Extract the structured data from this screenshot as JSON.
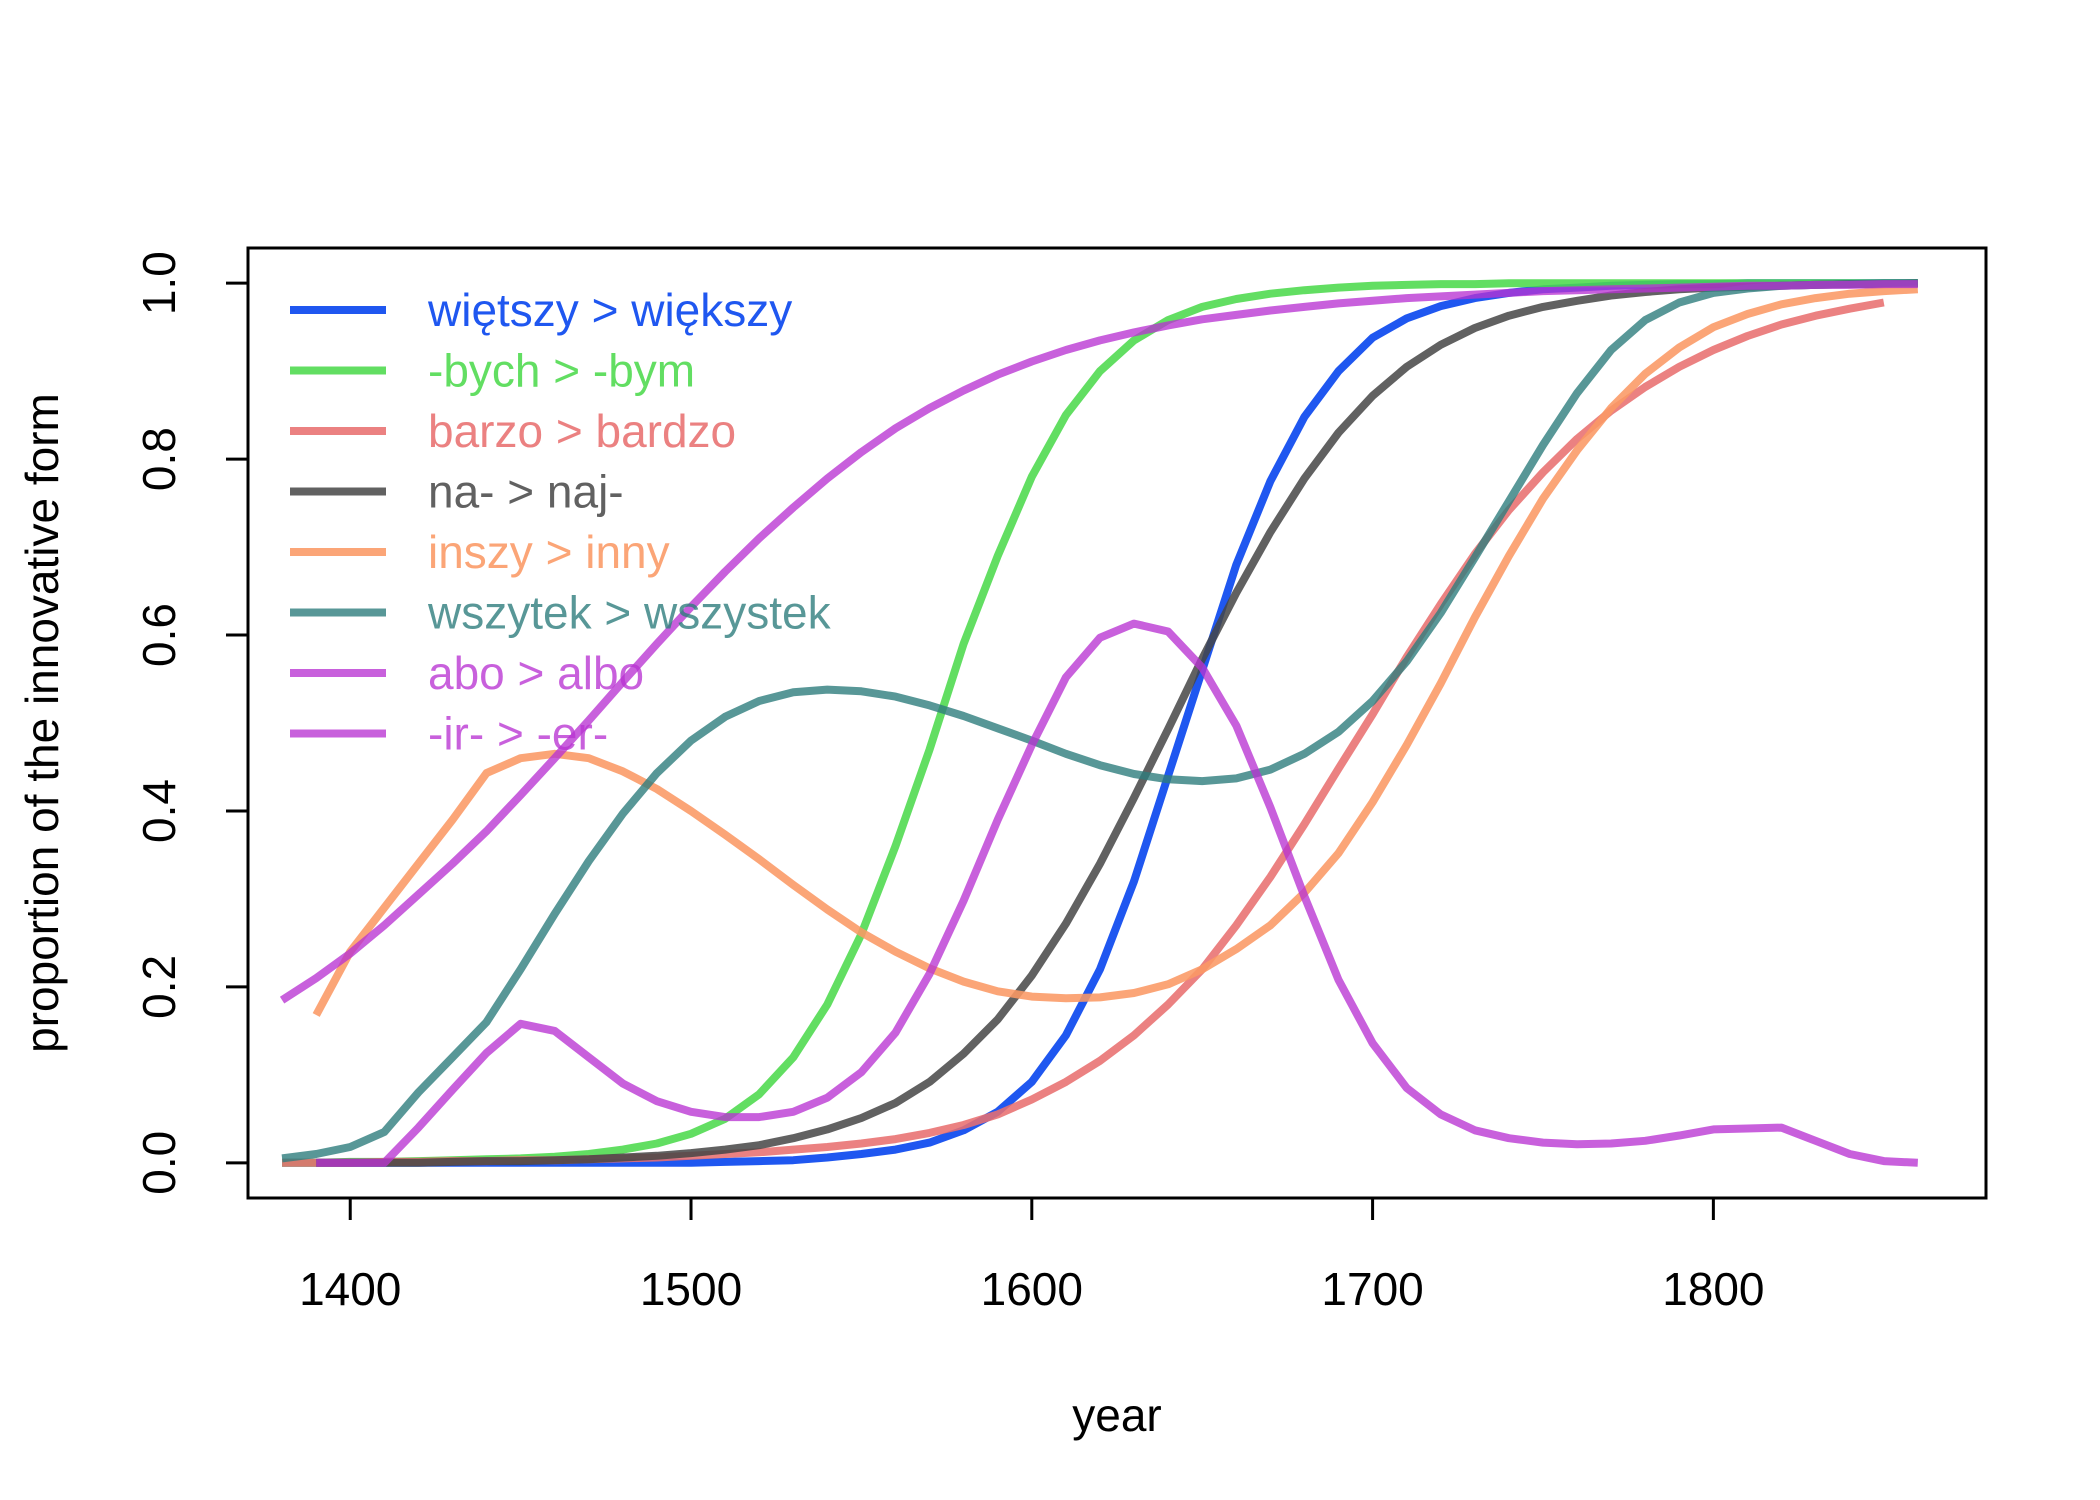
{
  "chart_data": {
    "type": "line",
    "title": "",
    "xlabel": "year",
    "ylabel": "proportion of the innovative form",
    "xlim": [
      1370,
      1880
    ],
    "ylim": [
      -0.04,
      1.04
    ],
    "xticks": [
      1400,
      1500,
      1600,
      1700,
      1800
    ],
    "yticks": [
      0.0,
      0.2,
      0.4,
      0.6,
      0.8,
      1.0
    ],
    "xtick_labels": [
      "1400",
      "1500",
      "1600",
      "1700",
      "1800"
    ],
    "ytick_labels": [
      "0.0",
      "0.2",
      "0.4",
      "0.6",
      "0.8",
      "1.0"
    ],
    "grid": false,
    "legend_position": "top-left",
    "series": [
      {
        "name": "więtszy > większy",
        "color": "#0040ee",
        "opacity": 0.88,
        "x": [
          1380,
          1390,
          1400,
          1410,
          1420,
          1430,
          1440,
          1450,
          1460,
          1470,
          1480,
          1490,
          1500,
          1510,
          1520,
          1530,
          1540,
          1550,
          1560,
          1570,
          1580,
          1590,
          1600,
          1610,
          1620,
          1630,
          1640,
          1650,
          1660,
          1670,
          1680,
          1690,
          1700,
          1710,
          1720,
          1730,
          1740,
          1750,
          1760,
          1770,
          1780,
          1790,
          1800,
          1810,
          1820,
          1830,
          1840,
          1850,
          1860
        ],
        "y": [
          0,
          0,
          0,
          0,
          0,
          0,
          0,
          0,
          0,
          0,
          0,
          0,
          0,
          0.001,
          0.002,
          0.003,
          0.006,
          0.01,
          0.015,
          0.023,
          0.037,
          0.058,
          0.092,
          0.145,
          0.22,
          0.32,
          0.44,
          0.56,
          0.68,
          0.775,
          0.848,
          0.9,
          0.938,
          0.96,
          0.974,
          0.983,
          0.989,
          0.993,
          0.995,
          0.997,
          0.998,
          0.999,
          0.999,
          1,
          1,
          1,
          1,
          1,
          1
        ]
      },
      {
        "name": "-bych > -bym",
        "color": "#4cd94c",
        "opacity": 0.88,
        "x": [
          1380,
          1390,
          1400,
          1410,
          1420,
          1430,
          1440,
          1450,
          1460,
          1470,
          1480,
          1490,
          1500,
          1510,
          1520,
          1530,
          1540,
          1550,
          1560,
          1570,
          1580,
          1590,
          1600,
          1610,
          1620,
          1630,
          1640,
          1650,
          1660,
          1670,
          1680,
          1690,
          1700,
          1710,
          1720,
          1730,
          1740,
          1750,
          1760,
          1770,
          1780,
          1790,
          1800,
          1810,
          1820,
          1830,
          1840,
          1850,
          1860
        ],
        "y": [
          0,
          0,
          0.001,
          0.001,
          0.002,
          0.003,
          0.004,
          0.005,
          0.007,
          0.01,
          0.015,
          0.022,
          0.033,
          0.05,
          0.078,
          0.12,
          0.18,
          0.26,
          0.36,
          0.47,
          0.59,
          0.69,
          0.78,
          0.85,
          0.9,
          0.935,
          0.958,
          0.973,
          0.982,
          0.988,
          0.992,
          0.995,
          0.997,
          0.998,
          0.999,
          0.999,
          1,
          1,
          1,
          1,
          1,
          1,
          1,
          1,
          1,
          1,
          1,
          1,
          1
        ]
      },
      {
        "name": "barzo > bardzo",
        "color": "#e87070",
        "opacity": 0.88,
        "x": [
          1380,
          1390,
          1400,
          1410,
          1420,
          1430,
          1440,
          1450,
          1460,
          1470,
          1480,
          1490,
          1500,
          1510,
          1520,
          1530,
          1540,
          1550,
          1560,
          1570,
          1580,
          1590,
          1600,
          1610,
          1620,
          1630,
          1640,
          1650,
          1660,
          1670,
          1680,
          1690,
          1700,
          1710,
          1720,
          1730,
          1740,
          1750,
          1760,
          1770,
          1780,
          1790,
          1800,
          1810,
          1820,
          1830,
          1840,
          1850
        ],
        "y": [
          0,
          0,
          0,
          0.001,
          0.001,
          0.002,
          0.002,
          0.003,
          0.003,
          0.004,
          0.005,
          0.006,
          0.008,
          0.01,
          0.012,
          0.015,
          0.018,
          0.022,
          0.027,
          0.034,
          0.043,
          0.055,
          0.072,
          0.092,
          0.116,
          0.145,
          0.18,
          0.22,
          0.27,
          0.325,
          0.385,
          0.448,
          0.51,
          0.575,
          0.635,
          0.692,
          0.742,
          0.785,
          0.823,
          0.855,
          0.882,
          0.905,
          0.924,
          0.94,
          0.953,
          0.963,
          0.971,
          0.978
        ]
      },
      {
        "name": "na- > naj-",
        "color": "#454545",
        "opacity": 0.85,
        "x": [
          1390,
          1400,
          1410,
          1420,
          1430,
          1440,
          1450,
          1460,
          1470,
          1480,
          1490,
          1500,
          1510,
          1520,
          1530,
          1540,
          1550,
          1560,
          1570,
          1580,
          1590,
          1600,
          1610,
          1620,
          1630,
          1640,
          1650,
          1660,
          1670,
          1680,
          1690,
          1700,
          1710,
          1720,
          1730,
          1740,
          1750,
          1760,
          1770,
          1780,
          1790,
          1800,
          1810,
          1820,
          1830,
          1840,
          1850,
          1860
        ],
        "y": [
          0,
          0,
          0,
          0,
          0.001,
          0.002,
          0.002,
          0.003,
          0.004,
          0.006,
          0.008,
          0.011,
          0.015,
          0.02,
          0.028,
          0.038,
          0.051,
          0.068,
          0.092,
          0.124,
          0.163,
          0.213,
          0.272,
          0.34,
          0.415,
          0.493,
          0.573,
          0.648,
          0.717,
          0.778,
          0.83,
          0.872,
          0.905,
          0.93,
          0.949,
          0.963,
          0.973,
          0.98,
          0.986,
          0.99,
          0.993,
          0.995,
          0.996,
          0.997,
          0.998,
          0.999,
          0.999,
          1
        ]
      },
      {
        "name": "inszy > inny",
        "color": "#fa9964",
        "opacity": 0.88,
        "x": [
          1390,
          1400,
          1410,
          1420,
          1430,
          1440,
          1450,
          1460,
          1470,
          1480,
          1490,
          1500,
          1510,
          1520,
          1530,
          1540,
          1550,
          1560,
          1570,
          1580,
          1590,
          1600,
          1610,
          1620,
          1630,
          1640,
          1650,
          1660,
          1670,
          1680,
          1690,
          1700,
          1710,
          1720,
          1730,
          1740,
          1750,
          1760,
          1770,
          1780,
          1790,
          1800,
          1810,
          1820,
          1830,
          1840,
          1850,
          1860
        ],
        "y": [
          0.168,
          0.24,
          0.29,
          0.34,
          0.39,
          0.443,
          0.46,
          0.465,
          0.46,
          0.445,
          0.425,
          0.4,
          0.373,
          0.345,
          0.316,
          0.288,
          0.262,
          0.24,
          0.221,
          0.206,
          0.195,
          0.189,
          0.187,
          0.188,
          0.193,
          0.203,
          0.22,
          0.243,
          0.27,
          0.307,
          0.352,
          0.41,
          0.475,
          0.545,
          0.62,
          0.69,
          0.755,
          0.81,
          0.858,
          0.897,
          0.927,
          0.95,
          0.965,
          0.976,
          0.983,
          0.988,
          0.991,
          0.993
        ]
      },
      {
        "name": "wszytek > wszystek",
        "color": "#2e7d7d",
        "opacity": 0.8,
        "x": [
          1380,
          1390,
          1400,
          1410,
          1420,
          1430,
          1440,
          1450,
          1460,
          1470,
          1480,
          1490,
          1500,
          1510,
          1520,
          1530,
          1540,
          1550,
          1560,
          1570,
          1580,
          1590,
          1600,
          1610,
          1620,
          1630,
          1640,
          1650,
          1660,
          1670,
          1680,
          1690,
          1700,
          1710,
          1720,
          1730,
          1740,
          1750,
          1760,
          1770,
          1780,
          1790,
          1800,
          1810,
          1820,
          1830,
          1840,
          1850,
          1860
        ],
        "y": [
          0.005,
          0.01,
          0.018,
          0.035,
          0.08,
          0.12,
          0.16,
          0.22,
          0.283,
          0.343,
          0.397,
          0.443,
          0.48,
          0.507,
          0.525,
          0.535,
          0.538,
          0.536,
          0.53,
          0.52,
          0.508,
          0.494,
          0.48,
          0.465,
          0.452,
          0.442,
          0.436,
          0.434,
          0.437,
          0.447,
          0.465,
          0.49,
          0.525,
          0.57,
          0.625,
          0.688,
          0.752,
          0.816,
          0.875,
          0.924,
          0.958,
          0.978,
          0.989,
          0.994,
          0.997,
          0.998,
          0.999,
          1,
          1
        ]
      },
      {
        "name": "abo > albo",
        "color": "#b833d2",
        "opacity": 0.78,
        "x": [
          1390,
          1400,
          1410,
          1420,
          1430,
          1440,
          1450,
          1460,
          1470,
          1480,
          1490,
          1500,
          1510,
          1520,
          1530,
          1540,
          1550,
          1560,
          1570,
          1580,
          1590,
          1600,
          1610,
          1620,
          1630,
          1640,
          1650,
          1660,
          1670,
          1680,
          1690,
          1700,
          1710,
          1720,
          1730,
          1740,
          1750,
          1760,
          1770,
          1780,
          1790,
          1800,
          1810,
          1820,
          1830,
          1840,
          1850,
          1860
        ],
        "y": [
          0,
          0,
          0,
          0.04,
          0.083,
          0.125,
          0.158,
          0.15,
          0.12,
          0.09,
          0.07,
          0.058,
          0.052,
          0.052,
          0.058,
          0.074,
          0.103,
          0.148,
          0.215,
          0.298,
          0.39,
          0.475,
          0.552,
          0.597,
          0.613,
          0.604,
          0.563,
          0.497,
          0.404,
          0.303,
          0.208,
          0.136,
          0.085,
          0.055,
          0.037,
          0.028,
          0.023,
          0.021,
          0.022,
          0.025,
          0.031,
          0.038,
          0.039,
          0.04,
          0.025,
          0.01,
          0.002,
          0
        ]
      },
      {
        "name": "-ir- > -er-",
        "color": "#b833d2",
        "opacity": 0.78,
        "x": [
          1380,
          1390,
          1400,
          1410,
          1420,
          1430,
          1440,
          1450,
          1460,
          1470,
          1480,
          1490,
          1500,
          1510,
          1520,
          1530,
          1540,
          1550,
          1560,
          1570,
          1580,
          1590,
          1600,
          1610,
          1620,
          1630,
          1640,
          1650,
          1660,
          1670,
          1680,
          1690,
          1700,
          1710,
          1720,
          1730,
          1740,
          1750,
          1760,
          1770,
          1780,
          1790,
          1800,
          1810,
          1820,
          1830,
          1840,
          1850,
          1860
        ],
        "y": [
          0.185,
          0.21,
          0.238,
          0.27,
          0.305,
          0.34,
          0.377,
          0.418,
          0.46,
          0.503,
          0.547,
          0.59,
          0.632,
          0.672,
          0.71,
          0.745,
          0.778,
          0.808,
          0.835,
          0.858,
          0.878,
          0.896,
          0.911,
          0.924,
          0.935,
          0.944,
          0.952,
          0.959,
          0.964,
          0.969,
          0.973,
          0.977,
          0.98,
          0.983,
          0.985,
          0.987,
          0.989,
          0.991,
          0.992,
          0.993,
          0.994,
          0.995,
          0.996,
          0.997,
          0.997,
          0.998,
          0.998,
          0.999,
          0.999
        ]
      }
    ]
  }
}
